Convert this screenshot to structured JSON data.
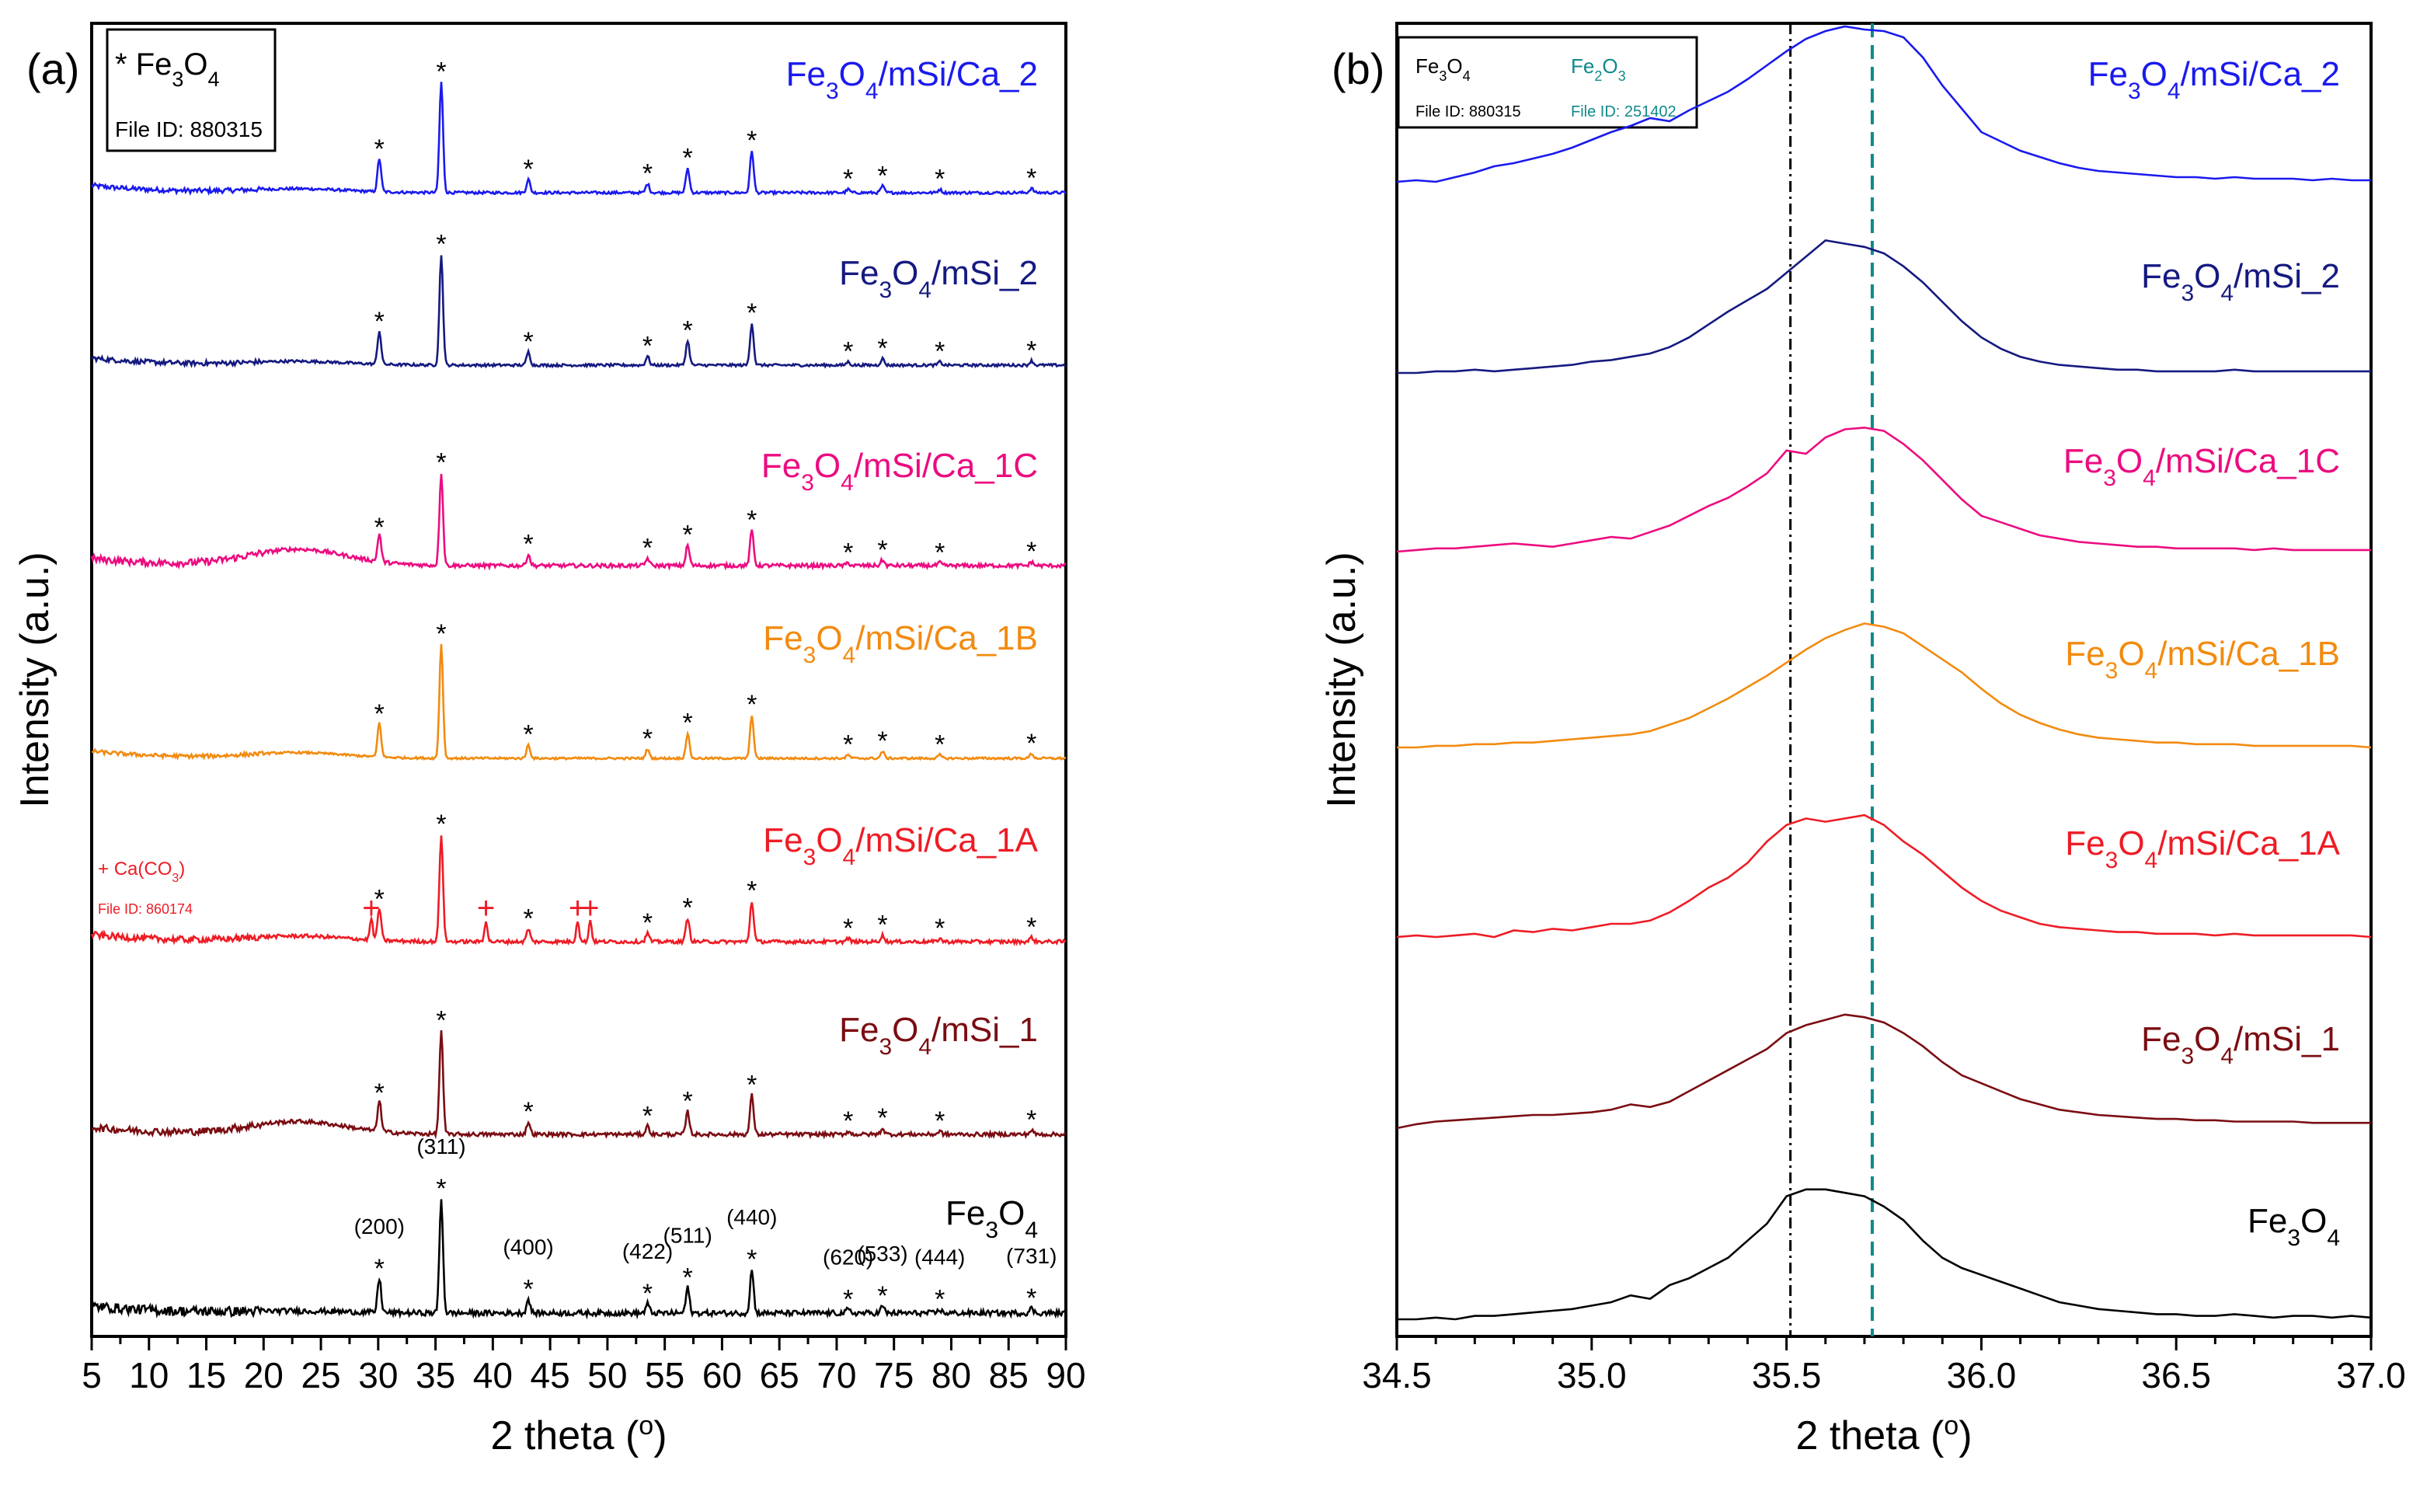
{
  "chart_data": [
    {
      "panel": "(a)",
      "type": "line",
      "xlabel_main": "2 theta (",
      "xlabel_sup": "o",
      "xlabel_end": ")",
      "ylabel": "Intensity (a.u.)",
      "xlim": [
        5,
        90
      ],
      "xticks": [
        "5",
        "10",
        "15",
        "20",
        "25",
        "30",
        "35",
        "40",
        "45",
        "50",
        "55",
        "60",
        "65",
        "70",
        "75",
        "80",
        "85",
        "90"
      ],
      "legend": {
        "marker": "*",
        "sym": "Fe",
        "sub1": "3",
        "mid": "O",
        "sub2": "4",
        "file": "File ID: 880315"
      },
      "caco3_legend": {
        "marker": "+",
        "pre": "Ca(CO",
        "sub": "3",
        "post": ")",
        "file": "File ID: 860174",
        "color": "#ee1c25"
      },
      "peaks": [
        30.1,
        35.5,
        43.1,
        53.5,
        57.0,
        62.6,
        71.0,
        74.0,
        79.0,
        87.0
      ],
      "peak_heights": [
        0.3,
        1.0,
        0.12,
        0.08,
        0.22,
        0.38,
        0.03,
        0.06,
        0.03,
        0.04
      ],
      "hkl": [
        {
          "label": "(200)",
          "x": 30.1
        },
        {
          "label": "(311)",
          "x": 35.5
        },
        {
          "label": "(400)",
          "x": 43.1
        },
        {
          "label": "(422)",
          "x": 53.5
        },
        {
          "label": "(511)",
          "x": 57.0
        },
        {
          "label": "(440)",
          "x": 62.6
        },
        {
          "label": "(620)",
          "x": 71.0
        },
        {
          "label": "(533)",
          "x": 74.0
        },
        {
          "label": "(444)",
          "x": 79.0
        },
        {
          "label": "(731)",
          "x": 87.0
        }
      ],
      "caco3_peaks": [
        29.4,
        39.4,
        47.4,
        48.5
      ],
      "series": [
        {
          "name_parts": [
            "Fe",
            "3",
            "O",
            "4",
            "/mSi/Ca_2"
          ],
          "color": "#1a1aee",
          "hump": 0.02,
          "peak_scale": 0.62,
          "noise": 0.015
        },
        {
          "name_parts": [
            "Fe",
            "3",
            "O",
            "4",
            "/mSi_2"
          ],
          "color": "#151a80",
          "hump": 0.02,
          "peak_scale": 0.62,
          "noise": 0.015
        },
        {
          "name_parts": [
            "Fe",
            "3",
            "O",
            "4",
            "/mSi/Ca_1C"
          ],
          "color": "#ec0c80",
          "hump": 0.09,
          "peak_scale": 0.52,
          "noise": 0.022
        },
        {
          "name_parts": [
            "Fe",
            "3",
            "O",
            "4",
            "/mSi/Ca_1B"
          ],
          "color": "#f28b10",
          "hump": 0.03,
          "peak_scale": 0.64,
          "noise": 0.012
        },
        {
          "name_parts": [
            "Fe",
            "3",
            "O",
            "4",
            "/mSi/Ca_1A"
          ],
          "color": "#ee1c25",
          "hump": 0.03,
          "peak_scale": 0.6,
          "noise": 0.02,
          "caco3": true
        },
        {
          "name_parts": [
            "Fe",
            "3",
            "O",
            "4",
            "/mSi_1"
          ],
          "color": "#7a0d12",
          "hump": 0.07,
          "peak_scale": 0.58,
          "noise": 0.022
        },
        {
          "name_parts": [
            "Fe",
            "3",
            "O",
            "4",
            ""
          ],
          "color": "#000000",
          "hump": 0.01,
          "peak_scale": 0.64,
          "noise": 0.03
        }
      ]
    },
    {
      "panel": "(b)",
      "type": "line",
      "xlabel_main": "2 theta (",
      "xlabel_sup": "o",
      "xlabel_end": ")",
      "ylabel": "Intensity (a.u.)",
      "xlim": [
        34.5,
        37.0
      ],
      "xticks": [
        "34.5",
        "35.0",
        "35.5",
        "36.0",
        "36.5",
        "37.0"
      ],
      "ref_lines": [
        {
          "x": 35.51,
          "color": "#000000",
          "style": "dash-dot",
          "name": "Fe3O4 reference"
        },
        {
          "x": 35.72,
          "color": "#0f8a8a",
          "style": "dash",
          "name": "Fe2O3 reference"
        }
      ],
      "legend": [
        {
          "sym": "Fe",
          "sub1": "3",
          "mid": "O",
          "sub2": "4",
          "file": "File ID: 880315",
          "color": "#000000"
        },
        {
          "sym": "Fe",
          "sub1": "2",
          "mid": "O",
          "sub2": "3",
          "file": "File ID: 251402",
          "color": "#0f8a8a"
        }
      ],
      "x": [
        34.5,
        34.55,
        34.6,
        34.65,
        34.7,
        34.75,
        34.8,
        34.85,
        34.9,
        34.95,
        35.0,
        35.05,
        35.1,
        35.15,
        35.2,
        35.25,
        35.3,
        35.35,
        35.4,
        35.45,
        35.5,
        35.55,
        35.6,
        35.65,
        35.7,
        35.75,
        35.8,
        35.85,
        35.9,
        35.95,
        36.0,
        36.05,
        36.1,
        36.15,
        36.2,
        36.25,
        36.3,
        36.35,
        36.4,
        36.45,
        36.5,
        36.55,
        36.6,
        36.65,
        36.7,
        36.75,
        36.8,
        36.85,
        36.9,
        36.95,
        37.0
      ],
      "series": [
        {
          "name_parts": [
            "Fe",
            "3",
            "O",
            "4",
            "/mSi/Ca_2"
          ],
          "color": "#1a1aee",
          "y": [
            0.0,
            0.01,
            0.0,
            0.03,
            0.06,
            0.1,
            0.12,
            0.15,
            0.18,
            0.22,
            0.27,
            0.32,
            0.36,
            0.41,
            0.39,
            0.46,
            0.52,
            0.58,
            0.66,
            0.75,
            0.84,
            0.92,
            0.97,
            1.0,
            0.98,
            0.97,
            0.93,
            0.8,
            0.62,
            0.47,
            0.32,
            0.26,
            0.2,
            0.16,
            0.12,
            0.09,
            0.07,
            0.06,
            0.05,
            0.04,
            0.03,
            0.03,
            0.02,
            0.03,
            0.02,
            0.02,
            0.02,
            0.01,
            0.02,
            0.01,
            0.01
          ]
        },
        {
          "name_parts": [
            "Fe",
            "3",
            "O",
            "4",
            "/mSi_2"
          ],
          "color": "#151a80",
          "y": [
            0.0,
            0.0,
            0.01,
            0.01,
            0.02,
            0.01,
            0.02,
            0.03,
            0.04,
            0.05,
            0.07,
            0.08,
            0.1,
            0.12,
            0.16,
            0.22,
            0.3,
            0.38,
            0.45,
            0.52,
            0.62,
            0.72,
            0.82,
            0.8,
            0.78,
            0.74,
            0.66,
            0.56,
            0.44,
            0.32,
            0.22,
            0.15,
            0.1,
            0.07,
            0.05,
            0.04,
            0.03,
            0.02,
            0.02,
            0.01,
            0.01,
            0.01,
            0.01,
            0.02,
            0.01,
            0.01,
            0.01,
            0.01,
            0.01,
            0.01,
            0.01
          ]
        },
        {
          "name_parts": [
            "Fe",
            "3",
            "O",
            "4",
            "/mSi/Ca_1C"
          ],
          "color": "#ec0c80",
          "y": [
            0.0,
            0.01,
            0.02,
            0.02,
            0.03,
            0.04,
            0.05,
            0.04,
            0.03,
            0.05,
            0.07,
            0.09,
            0.08,
            0.12,
            0.16,
            0.22,
            0.28,
            0.33,
            0.4,
            0.48,
            0.62,
            0.6,
            0.7,
            0.75,
            0.76,
            0.74,
            0.66,
            0.56,
            0.44,
            0.32,
            0.22,
            0.18,
            0.14,
            0.1,
            0.08,
            0.06,
            0.05,
            0.04,
            0.03,
            0.03,
            0.02,
            0.02,
            0.02,
            0.02,
            0.01,
            0.02,
            0.01,
            0.01,
            0.01,
            0.01,
            0.01
          ]
        },
        {
          "name_parts": [
            "Fe",
            "3",
            "O",
            "4",
            "/mSi/Ca_1B"
          ],
          "color": "#f28b10",
          "y": [
            0.0,
            0.0,
            0.01,
            0.01,
            0.02,
            0.02,
            0.03,
            0.03,
            0.04,
            0.05,
            0.06,
            0.07,
            0.08,
            0.1,
            0.14,
            0.18,
            0.24,
            0.3,
            0.37,
            0.44,
            0.52,
            0.6,
            0.67,
            0.72,
            0.76,
            0.74,
            0.7,
            0.62,
            0.54,
            0.46,
            0.36,
            0.27,
            0.2,
            0.15,
            0.11,
            0.08,
            0.06,
            0.05,
            0.04,
            0.03,
            0.03,
            0.02,
            0.02,
            0.02,
            0.01,
            0.01,
            0.01,
            0.01,
            0.01,
            0.01,
            0.0
          ]
        },
        {
          "name_parts": [
            "Fe",
            "3",
            "O",
            "4",
            "/mSi/Ca_1A"
          ],
          "color": "#ee1c25",
          "y": [
            0.0,
            0.01,
            0.0,
            0.01,
            0.02,
            0.0,
            0.04,
            0.03,
            0.05,
            0.04,
            0.06,
            0.08,
            0.08,
            0.1,
            0.15,
            0.22,
            0.3,
            0.36,
            0.45,
            0.58,
            0.68,
            0.72,
            0.7,
            0.72,
            0.74,
            0.68,
            0.58,
            0.5,
            0.4,
            0.3,
            0.22,
            0.16,
            0.12,
            0.08,
            0.06,
            0.05,
            0.04,
            0.03,
            0.03,
            0.02,
            0.02,
            0.02,
            0.01,
            0.02,
            0.01,
            0.01,
            0.01,
            0.01,
            0.01,
            0.01,
            0.0
          ]
        },
        {
          "name_parts": [
            "Fe",
            "3",
            "O",
            "4",
            "/mSi_1"
          ],
          "color": "#7a0d12",
          "y": [
            0.0,
            0.03,
            0.05,
            0.06,
            0.07,
            0.08,
            0.09,
            0.1,
            0.1,
            0.11,
            0.12,
            0.14,
            0.18,
            0.16,
            0.2,
            0.28,
            0.36,
            0.44,
            0.52,
            0.6,
            0.72,
            0.78,
            0.82,
            0.86,
            0.84,
            0.8,
            0.72,
            0.62,
            0.5,
            0.4,
            0.34,
            0.28,
            0.22,
            0.18,
            0.14,
            0.12,
            0.1,
            0.09,
            0.08,
            0.07,
            0.07,
            0.06,
            0.06,
            0.05,
            0.05,
            0.05,
            0.05,
            0.04,
            0.04,
            0.04,
            0.04
          ]
        },
        {
          "name_parts": [
            "Fe",
            "3",
            "O",
            "4",
            ""
          ],
          "color": "#000000",
          "y": [
            0.0,
            0.0,
            0.01,
            0.0,
            0.02,
            0.02,
            0.03,
            0.04,
            0.05,
            0.06,
            0.08,
            0.1,
            0.14,
            0.12,
            0.2,
            0.24,
            0.3,
            0.36,
            0.46,
            0.56,
            0.72,
            0.76,
            0.76,
            0.74,
            0.72,
            0.66,
            0.58,
            0.46,
            0.36,
            0.3,
            0.26,
            0.22,
            0.18,
            0.14,
            0.1,
            0.08,
            0.06,
            0.05,
            0.04,
            0.03,
            0.03,
            0.02,
            0.02,
            0.03,
            0.02,
            0.01,
            0.02,
            0.02,
            0.01,
            0.02,
            0.01
          ]
        }
      ]
    }
  ]
}
